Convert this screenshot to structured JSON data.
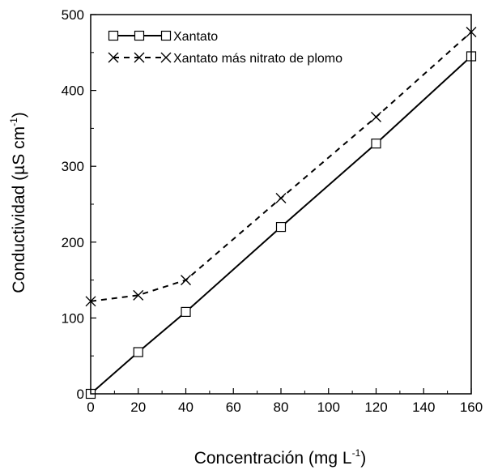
{
  "chart_data": {
    "type": "line",
    "xlabel": "Concentración (mg L",
    "xlabel_sup": "-1",
    "xlabel_end": ")",
    "ylabel": "Conductividad (µS cm",
    "ylabel_sup": "-1",
    "ylabel_end": ")",
    "xlim": [
      0,
      160
    ],
    "ylim": [
      0,
      500
    ],
    "xticks": [
      "0",
      "20",
      "40",
      "60",
      "80",
      "100",
      "120",
      "140",
      "160"
    ],
    "yticks": [
      "0",
      "100",
      "200",
      "300",
      "400",
      "500"
    ],
    "grid": false,
    "legend_position": "top-left",
    "series": [
      {
        "name": "Xantato",
        "marker": "square",
        "line": "solid",
        "color": "#000000",
        "x": [
          0,
          20,
          40,
          80,
          120,
          160
        ],
        "y": [
          0,
          55,
          108,
          220,
          330,
          445
        ]
      },
      {
        "name": "Xantato más nitrato de plomo",
        "marker": "x",
        "line": "dashed",
        "color": "#000000",
        "x": [
          0,
          20,
          40,
          80,
          120,
          160
        ],
        "y": [
          122,
          130,
          150,
          258,
          365,
          477
        ]
      }
    ]
  }
}
